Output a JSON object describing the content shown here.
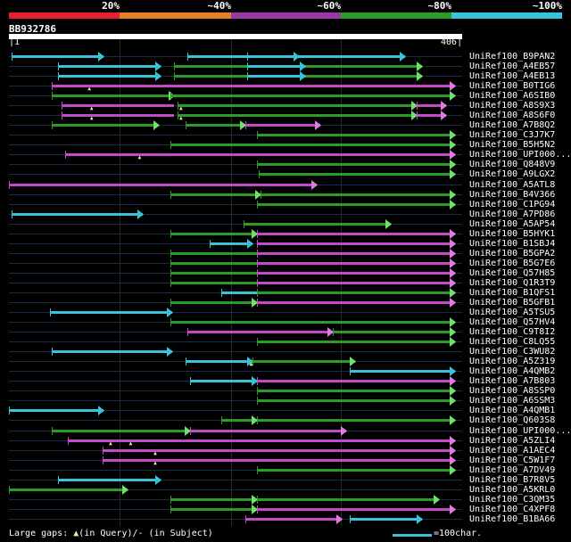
{
  "legend": {
    "labels": [
      "20%",
      "~40%",
      "~60%",
      "~80%",
      "~100%"
    ],
    "colors": [
      "#e8202e",
      "#e67e22",
      "#9b38a8",
      "#2a9c27",
      "#37c4d9"
    ]
  },
  "query": {
    "name": "BB932786",
    "start": "1",
    "end": "406",
    "length": 406
  },
  "hits": [
    {
      "name": "UniRef100_B9PAN2",
      "segs": [
        [
          2,
          85,
          "c",
          1
        ],
        [
          160,
          260,
          "c",
          1
        ],
        [
          213,
          355,
          "c",
          1
        ]
      ]
    },
    {
      "name": "UniRef100_A4EB57",
      "segs": [
        [
          44,
          136,
          "c",
          1
        ],
        [
          148,
          370,
          "g",
          1
        ],
        [
          213,
          265,
          "c",
          1
        ]
      ]
    },
    {
      "name": "UniRef100_A4EB13",
      "segs": [
        [
          44,
          136,
          "c",
          1
        ],
        [
          148,
          370,
          "g",
          1
        ],
        [
          213,
          265,
          "c",
          1
        ]
      ]
    },
    {
      "name": "UniRef100_B0TIG6",
      "segs": [
        [
          38,
          400,
          "p",
          1
        ]
      ],
      "gapq": [
        73
      ]
    },
    {
      "name": "UniRef100_A6SIB0",
      "segs": [
        [
          38,
          148,
          "g",
          1
        ],
        [
          145,
          400,
          "g",
          1
        ]
      ]
    },
    {
      "name": "UniRef100_A8S9X3",
      "segs": [
        [
          47,
          148,
          "p",
          0
        ],
        [
          151,
          365,
          "g",
          1
        ],
        [
          365,
          392,
          "p",
          1
        ]
      ],
      "gapq": [
        75,
        155
      ]
    },
    {
      "name": "UniRef100_A8S6F0",
      "segs": [
        [
          47,
          148,
          "p",
          0
        ],
        [
          151,
          365,
          "g",
          1
        ],
        [
          365,
          392,
          "p",
          1
        ]
      ],
      "gapq": [
        75,
        155
      ]
    },
    {
      "name": "UniRef100_A7B8Q2",
      "segs": [
        [
          38,
          134,
          "g",
          1
        ],
        [
          158,
          212,
          "g",
          1
        ],
        [
          212,
          279,
          "p",
          1
        ]
      ]
    },
    {
      "name": "UniRef100_C3J7K7",
      "segs": [
        [
          222,
          400,
          "g",
          1
        ]
      ]
    },
    {
      "name": "UniRef100_B5H5N2",
      "segs": [
        [
          145,
          400,
          "g",
          1
        ]
      ]
    },
    {
      "name": "UniRef100_UPI000...",
      "segs": [
        [
          50,
          400,
          "p",
          1
        ]
      ],
      "gapq": [
        118
      ]
    },
    {
      "name": "UniRef100_Q848V9",
      "segs": [
        [
          222,
          400,
          "g",
          1
        ]
      ]
    },
    {
      "name": "UniRef100_A9LGX2",
      "segs": [
        [
          224,
          400,
          "g",
          1
        ]
      ]
    },
    {
      "name": "UniRef100_A5ATL8",
      "segs": [
        [
          0,
          276,
          "p",
          1
        ]
      ]
    },
    {
      "name": "UniRef100_B4V366",
      "segs": [
        [
          145,
          225,
          "g",
          1
        ],
        [
          225,
          400,
          "g",
          1
        ]
      ]
    },
    {
      "name": "UniRef100_C1PG94",
      "segs": [
        [
          222,
          400,
          "g",
          1
        ]
      ]
    },
    {
      "name": "UniRef100_A7PD86",
      "segs": [
        [
          2,
          120,
          "c",
          1
        ]
      ]
    },
    {
      "name": "UniRef100_A5AP54",
      "segs": [
        [
          210,
          342,
          "g",
          1
        ]
      ]
    },
    {
      "name": "UniRef100_B5HYK1",
      "segs": [
        [
          145,
          222,
          "g",
          1
        ],
        [
          222,
          400,
          "p",
          1
        ]
      ]
    },
    {
      "name": "UniRef100_B1SBJ4",
      "segs": [
        [
          180,
          218,
          "c",
          1
        ],
        [
          222,
          400,
          "p",
          1
        ]
      ]
    },
    {
      "name": "UniRef100_B5GPA2",
      "segs": [
        [
          145,
          222,
          "g",
          0
        ],
        [
          222,
          400,
          "p",
          1
        ]
      ]
    },
    {
      "name": "UniRef100_B5G7E6",
      "segs": [
        [
          145,
          222,
          "g",
          0
        ],
        [
          222,
          400,
          "p",
          1
        ]
      ]
    },
    {
      "name": "UniRef100_Q57H85",
      "segs": [
        [
          145,
          222,
          "g",
          0
        ],
        [
          222,
          400,
          "p",
          1
        ]
      ]
    },
    {
      "name": "UniRef100_Q1R3T9",
      "segs": [
        [
          145,
          222,
          "g",
          0
        ],
        [
          222,
          400,
          "p",
          1
        ]
      ]
    },
    {
      "name": "UniRef100_B1QFS1",
      "segs": [
        [
          190,
          222,
          "c",
          0
        ],
        [
          222,
          400,
          "g",
          1
        ]
      ]
    },
    {
      "name": "UniRef100_B5GFB1",
      "segs": [
        [
          145,
          222,
          "g",
          1
        ],
        [
          222,
          400,
          "p",
          1
        ]
      ]
    },
    {
      "name": "UniRef100_A5TSU5",
      "segs": [
        [
          37,
          146,
          "c",
          1
        ]
      ]
    },
    {
      "name": "UniRef100_Q57HV4",
      "segs": [
        [
          145,
          400,
          "g",
          1
        ]
      ]
    },
    {
      "name": "UniRef100_C9T8I2",
      "segs": [
        [
          160,
          290,
          "p",
          1
        ],
        [
          290,
          400,
          "g",
          1
        ]
      ]
    },
    {
      "name": "UniRef100_C8LQ55",
      "segs": [
        [
          222,
          400,
          "g",
          1
        ]
      ]
    },
    {
      "name": "UniRef100_C3WU82",
      "segs": [
        [
          38,
          146,
          "c",
          1
        ]
      ]
    },
    {
      "name": "UniRef100_A5Z319",
      "segs": [
        [
          158,
          218,
          "c",
          1
        ],
        [
          218,
          310,
          "g",
          1
        ]
      ],
      "gapq": [
        218
      ]
    },
    {
      "name": "UniRef100_A4QMB2",
      "segs": [
        [
          305,
          400,
          "c",
          1
        ]
      ]
    },
    {
      "name": "UniRef100_A7B803",
      "segs": [
        [
          162,
          222,
          "c",
          1
        ],
        [
          222,
          400,
          "p",
          1
        ]
      ]
    },
    {
      "name": "UniRef100_A8SSP0",
      "segs": [
        [
          222,
          400,
          "g",
          1
        ]
      ]
    },
    {
      "name": "UniRef100_A6SSM3",
      "segs": [
        [
          222,
          400,
          "g",
          1
        ]
      ]
    },
    {
      "name": "UniRef100_A4QMB1",
      "segs": [
        [
          0,
          85,
          "c",
          1
        ]
      ]
    },
    {
      "name": "UniRef100_Q603S8",
      "segs": [
        [
          190,
          222,
          "g",
          1
        ],
        [
          222,
          400,
          "g",
          1
        ]
      ]
    },
    {
      "name": "UniRef100_UPI000...",
      "segs": [
        [
          38,
          162,
          "g",
          1
        ],
        [
          162,
          302,
          "p",
          1
        ]
      ]
    },
    {
      "name": "UniRef100_A5ZLI4",
      "segs": [
        [
          53,
          400,
          "p",
          1
        ]
      ],
      "gapq": [
        92,
        110
      ]
    },
    {
      "name": "UniRef100_A1AEC4",
      "segs": [
        [
          84,
          400,
          "p",
          1
        ]
      ],
      "gapq": [
        132
      ]
    },
    {
      "name": "UniRef100_C5W1F7",
      "segs": [
        [
          84,
          400,
          "p",
          1
        ]
      ],
      "gapq": [
        132
      ]
    },
    {
      "name": "UniRef100_A7DV49",
      "segs": [
        [
          222,
          400,
          "g",
          1
        ]
      ]
    },
    {
      "name": "UniRef100_B7R8V5",
      "segs": [
        [
          44,
          136,
          "c",
          1
        ]
      ]
    },
    {
      "name": "UniRef100_A5KRL0",
      "segs": [
        [
          0,
          106,
          "g",
          1
        ]
      ]
    },
    {
      "name": "UniRef100_C3QM35",
      "segs": [
        [
          145,
          222,
          "g",
          1
        ],
        [
          222,
          385,
          "g",
          1
        ]
      ]
    },
    {
      "name": "UniRef100_C4XPF8",
      "segs": [
        [
          145,
          222,
          "g",
          1
        ],
        [
          222,
          400,
          "p",
          1
        ]
      ]
    },
    {
      "name": "UniRef100_B1BA66",
      "segs": [
        [
          212,
          298,
          "p",
          1
        ],
        [
          305,
          370,
          "c",
          1
        ]
      ]
    }
  ],
  "footer": {
    "gaps_prefix": "Large gaps: ",
    "gap_q": "(in Query)/",
    "gap_s": "- (in Subject)",
    "legend_text": "=100char."
  }
}
